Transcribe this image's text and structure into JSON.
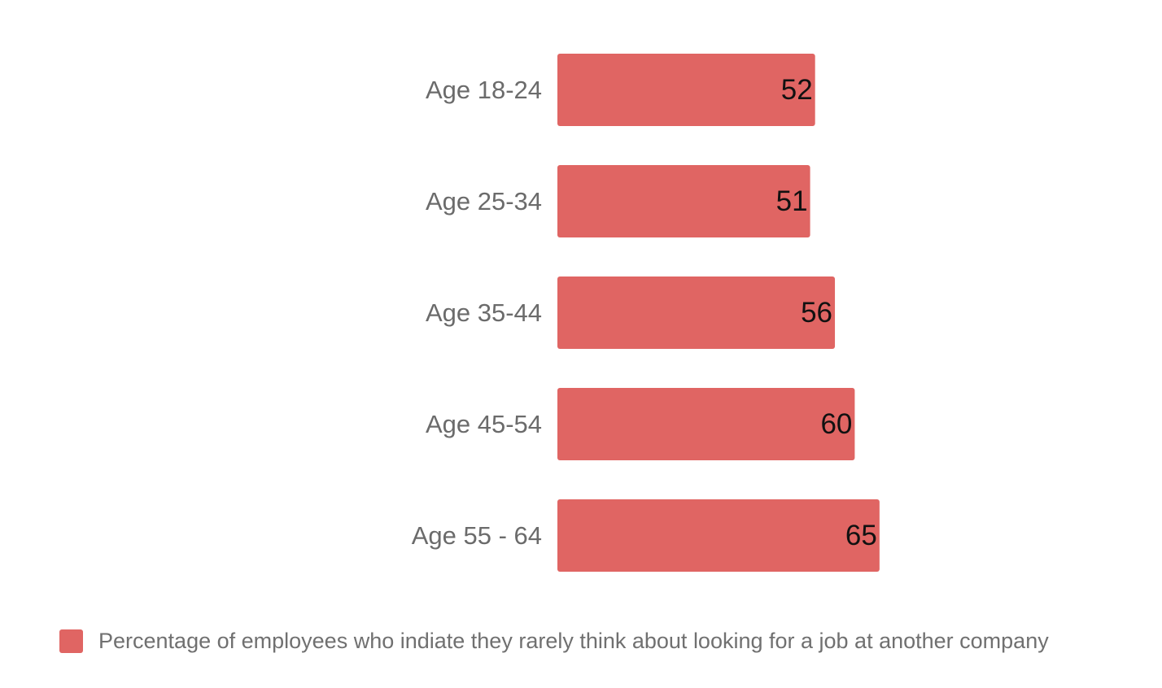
{
  "chart_data": {
    "type": "bar",
    "orientation": "horizontal",
    "categories": [
      "Age 18-24",
      "Age 25-34",
      "Age 35-44",
      "Age 45-54",
      "Age 55 - 64"
    ],
    "series": [
      {
        "name": "Percentage of employees who indiate they rarely think about looking for a job at another company",
        "values": [
          52,
          51,
          56,
          60,
          65
        ],
        "color": "#e06563"
      }
    ],
    "data_labels": [
      "52",
      "51",
      "56",
      "60",
      "65"
    ],
    "legend_position": "bottom-left",
    "grid": false,
    "xlim": [
      0,
      100
    ]
  }
}
